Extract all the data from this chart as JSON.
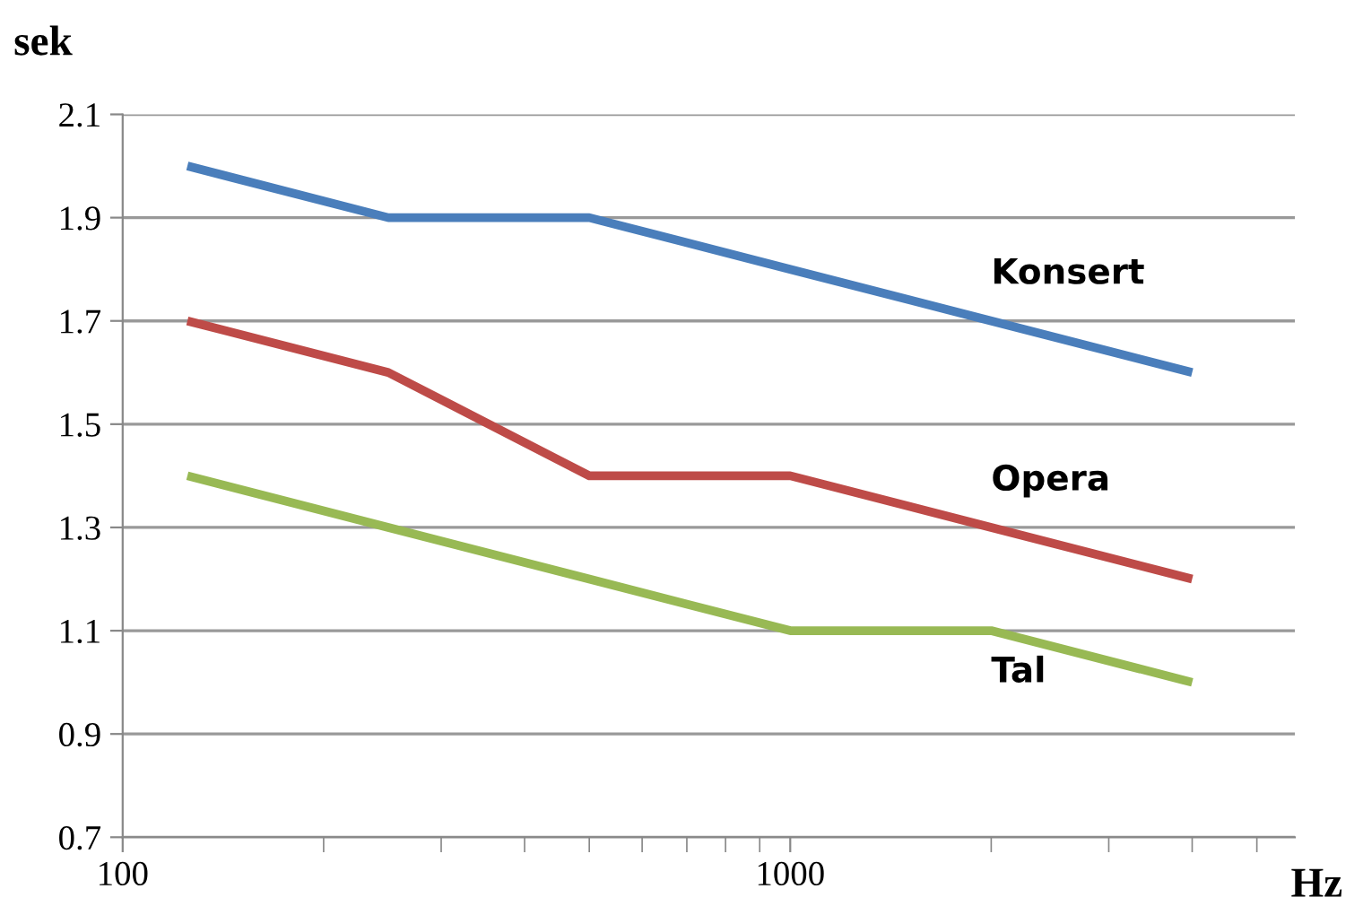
{
  "chart_data": {
    "type": "line",
    "xlabel": "Hz",
    "ylabel": "sek",
    "log": "x",
    "x": [
      125,
      250,
      500,
      1000,
      2000,
      4000
    ],
    "xlim": [
      100,
      5700
    ],
    "xticks": [
      100,
      1000
    ],
    "ylim": [
      0.7,
      2.1
    ],
    "yticks": [
      0.7,
      0.9,
      1.1,
      1.3,
      1.5,
      1.7,
      1.9,
      2.1
    ],
    "grid": "y",
    "legend": false,
    "marker": "none",
    "line_style": "solid",
    "series": [
      {
        "name": "Konsert",
        "color": "#4a7ebb",
        "values": [
          2.0,
          1.9,
          1.9,
          1.8,
          1.7,
          1.6
        ]
      },
      {
        "name": "Opera",
        "color": "#be4b48",
        "values": [
          1.7,
          1.6,
          1.4,
          1.4,
          1.3,
          1.2
        ]
      },
      {
        "name": "Tal",
        "color": "#98b954",
        "values": [
          1.4,
          1.3,
          1.2,
          1.1,
          1.1,
          1.0
        ]
      }
    ]
  }
}
